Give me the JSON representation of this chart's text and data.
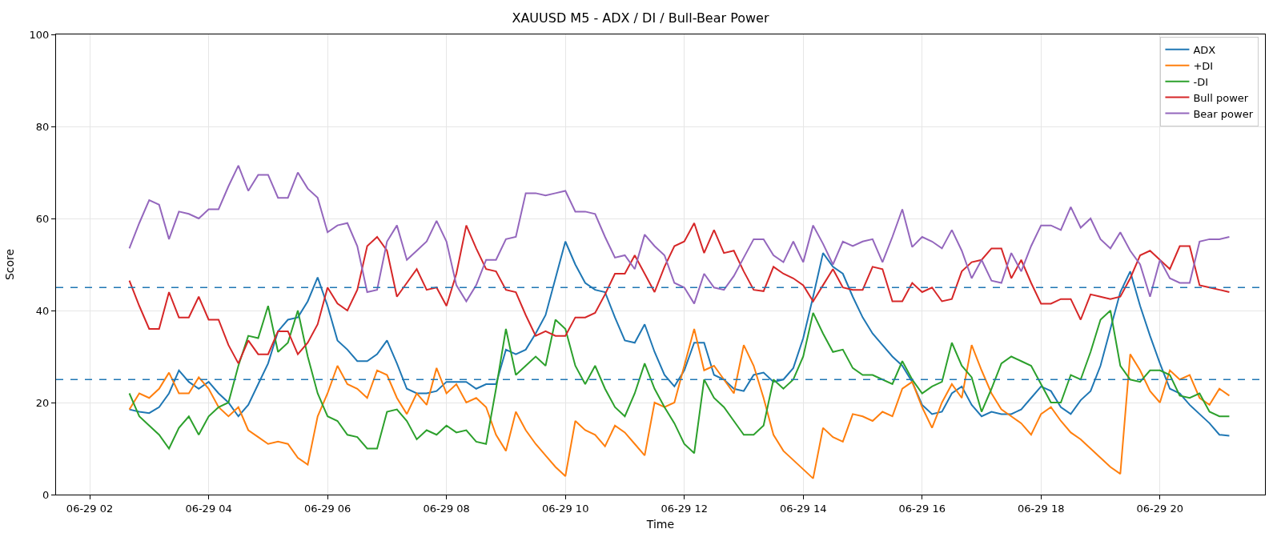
{
  "chart_data": {
    "type": "line",
    "title": "XAUUSD M5 - ADX / DI / Bull-Bear Power",
    "xlabel": "Time",
    "ylabel": "Score",
    "x": [
      "--06-29T02:40",
      "--06-29T02:50",
      "--06-29T03:00",
      "--06-29T03:10",
      "--06-29T03:20",
      "--06-29T03:30",
      "--06-29T03:40",
      "--06-29T03:50",
      "--06-29T04:00",
      "--06-29T04:10",
      "--06-29T04:20",
      "--06-29T04:30",
      "--06-29T04:40",
      "--06-29T04:50",
      "--06-29T05:00",
      "--06-29T05:10",
      "--06-29T05:20",
      "--06-29T05:30",
      "--06-29T05:40",
      "--06-29T05:50",
      "--06-29T06:00",
      "--06-29T06:10",
      "--06-29T06:20",
      "--06-29T06:30",
      "--06-29T06:40",
      "--06-29T06:50",
      "--06-29T07:00",
      "--06-29T07:10",
      "--06-29T07:20",
      "--06-29T07:30",
      "--06-29T07:40",
      "--06-29T07:50",
      "--06-29T08:00",
      "--06-29T08:10",
      "--06-29T08:20",
      "--06-29T08:30",
      "--06-29T08:40",
      "--06-29T08:50",
      "--06-29T09:00",
      "--06-29T09:10",
      "--06-29T09:20",
      "--06-29T09:30",
      "--06-29T09:40",
      "--06-29T09:50",
      "--06-29T10:00",
      "--06-29T10:10",
      "--06-29T10:20",
      "--06-29T10:30",
      "--06-29T10:40",
      "--06-29T10:50",
      "--06-29T11:00",
      "--06-29T11:10",
      "--06-29T11:20",
      "--06-29T11:30",
      "--06-29T11:40",
      "--06-29T11:50",
      "--06-29T12:00",
      "--06-29T12:10",
      "--06-29T12:20",
      "--06-29T12:30",
      "--06-29T12:40",
      "--06-29T12:50",
      "--06-29T13:00",
      "--06-29T13:10",
      "--06-29T13:20",
      "--06-29T13:30",
      "--06-29T13:40",
      "--06-29T13:50",
      "--06-29T14:00",
      "--06-29T14:10",
      "--06-29T14:20",
      "--06-29T14:30",
      "--06-29T14:40",
      "--06-29T14:50",
      "--06-29T15:00",
      "--06-29T15:10",
      "--06-29T15:20",
      "--06-29T15:30",
      "--06-29T15:40",
      "--06-29T15:50",
      "--06-29T16:00",
      "--06-29T16:10",
      "--06-29T16:20",
      "--06-29T16:30",
      "--06-29T16:40",
      "--06-29T16:50",
      "--06-29T17:00",
      "--06-29T17:10",
      "--06-29T17:20",
      "--06-29T17:30",
      "--06-29T17:40",
      "--06-29T17:50",
      "--06-29T18:00",
      "--06-29T18:10",
      "--06-29T18:20",
      "--06-29T18:30",
      "--06-29T18:40",
      "--06-29T18:50",
      "--06-29T19:00",
      "--06-29T19:10",
      "--06-29T19:20",
      "--06-29T19:30",
      "--06-29T19:40",
      "--06-29T19:50",
      "--06-29T20:00",
      "--06-29T20:10",
      "--06-29T20:20",
      "--06-29T20:30",
      "--06-29T20:40",
      "--06-29T20:50",
      "--06-29T21:00",
      "--06-29T21:10"
    ],
    "series": [
      {
        "name": "ADX",
        "color": "#1f77b4",
        "values": [
          18.5,
          18,
          17.7,
          19,
          22,
          27,
          24.5,
          23,
          24.5,
          22,
          20,
          17,
          19.5,
          24,
          28.5,
          35.5,
          38,
          38.5,
          42,
          47.2,
          41,
          33.5,
          31.5,
          29,
          29,
          30.5,
          33.5,
          28.5,
          23,
          22,
          22,
          22.5,
          24.5,
          24.5,
          24.5,
          23,
          24,
          24,
          31.5,
          30.5,
          31.5,
          35,
          39,
          47,
          55,
          50,
          46,
          44.5,
          44,
          38.5,
          33.5,
          33,
          37,
          31,
          26,
          23.5,
          27,
          33,
          33,
          26,
          25,
          23,
          22.5,
          26,
          26.5,
          24.5,
          25,
          27.5,
          34,
          43,
          52.5,
          49.5,
          48,
          43,
          38.5,
          35,
          32.5,
          30,
          28,
          24.5,
          19.5,
          17.5,
          18,
          22,
          23.5,
          19.5,
          17,
          18,
          17.5,
          17.5,
          18.5,
          21,
          23.5,
          22.5,
          19,
          17.5,
          20.5,
          22.5,
          28,
          36,
          44,
          48.5,
          41,
          34.5,
          28.5,
          23,
          22,
          19.5,
          17.5,
          15.5,
          13,
          12.8
        ]
      },
      {
        "name": "+DI",
        "color": "#ff7f0e",
        "values": [
          18.5,
          22,
          21,
          23,
          26.5,
          22,
          22,
          25.5,
          23,
          19,
          17,
          19,
          14,
          12.5,
          11,
          11.5,
          11,
          8,
          6.5,
          17,
          22,
          28,
          24,
          23,
          21,
          27,
          26,
          21,
          17.5,
          22,
          19.5,
          27.5,
          22,
          24,
          20,
          21,
          19,
          13,
          9.5,
          18,
          14,
          11,
          8.5,
          6,
          4,
          16,
          14,
          13,
          10.5,
          15,
          13.5,
          11,
          8.5,
          20,
          19,
          20,
          28,
          36,
          27,
          28,
          25,
          22,
          32.5,
          28,
          21,
          13,
          9.5,
          7.5,
          5.5,
          3.5,
          14.5,
          12.5,
          11.5,
          17.5,
          17,
          16,
          18,
          17,
          23,
          24.5,
          19,
          14.5,
          20,
          24,
          21,
          32.5,
          27,
          22,
          18.5,
          17,
          15.5,
          13,
          17.5,
          19,
          16,
          13.5,
          12,
          10,
          8,
          6,
          4.5,
          30.5,
          27,
          22.5,
          20,
          27,
          25,
          26,
          21,
          19.5,
          23,
          21.5
        ]
      },
      {
        "name": "-DI",
        "color": "#2ca02c",
        "values": [
          22,
          17,
          15,
          13,
          10,
          14.5,
          17,
          13,
          17,
          19,
          20,
          28,
          34.5,
          34,
          41,
          31,
          33,
          40,
          30,
          22,
          17,
          16,
          13,
          12.5,
          10,
          10,
          18,
          18.5,
          16,
          12,
          14,
          13,
          15,
          13.5,
          14,
          11.5,
          11,
          23,
          36,
          26,
          28,
          30,
          28,
          38,
          36,
          28,
          24,
          28,
          23,
          19,
          17,
          22,
          28.5,
          23,
          19,
          15.5,
          11,
          9,
          25,
          21,
          19,
          16,
          13,
          13,
          15,
          25,
          23,
          25,
          30,
          39.5,
          35,
          31,
          31.5,
          27.5,
          26,
          26,
          25,
          24,
          29,
          25,
          22,
          23.5,
          24.5,
          33,
          28,
          25.5,
          18,
          23,
          28.5,
          30,
          29,
          28,
          24,
          20,
          20,
          26,
          25,
          31,
          38,
          40,
          28,
          25,
          24.5,
          27,
          27,
          26,
          21.5,
          21,
          22,
          18,
          17,
          17
        ]
      },
      {
        "name": "Bull power",
        "color": "#d62728",
        "values": [
          46.5,
          41,
          36,
          36,
          44,
          38.5,
          38.5,
          43,
          38,
          38,
          32.5,
          28.5,
          33.5,
          30.5,
          30.5,
          35.5,
          35.5,
          30.5,
          33,
          37,
          45,
          41.5,
          40,
          44.5,
          54,
          56,
          53,
          43,
          46,
          49,
          44.5,
          45,
          41,
          48,
          58.5,
          53.5,
          49,
          48.5,
          44.5,
          44,
          39,
          34.5,
          35.5,
          34.5,
          34.5,
          38.5,
          38.5,
          39.5,
          43.5,
          48,
          48,
          52,
          48,
          44,
          49.5,
          54,
          55,
          59,
          52.5,
          57.5,
          52.5,
          53,
          48.5,
          44.5,
          44.2,
          49.5,
          48,
          47,
          45.5,
          42,
          45.5,
          49,
          45,
          44.5,
          44.5,
          49.5,
          49,
          42,
          42,
          46,
          44,
          45,
          42,
          42.5,
          48.5,
          50.5,
          51,
          53.5,
          53.5,
          47,
          51,
          46,
          41.5,
          41.5,
          42.5,
          42.5,
          38,
          43.5,
          43,
          42.5,
          43,
          47,
          52,
          53,
          51,
          49,
          54,
          54,
          45.5,
          45,
          44.5,
          44
        ]
      },
      {
        "name": "Bear power",
        "color": "#9467bd",
        "values": [
          53.5,
          59,
          64,
          63,
          55.5,
          61.5,
          61,
          60,
          62,
          62,
          67,
          71.5,
          66,
          69.5,
          69.5,
          64.5,
          64.5,
          70,
          66.5,
          64.5,
          57,
          58.5,
          59,
          54,
          44,
          44.5,
          55,
          58.5,
          51,
          53,
          55,
          59.5,
          55,
          45.5,
          42,
          45.5,
          51,
          51,
          55.5,
          56,
          65.5,
          65.5,
          65,
          65.5,
          66,
          61.5,
          61.5,
          61,
          56,
          51.5,
          52,
          49,
          56.5,
          54,
          52,
          46,
          45,
          41.5,
          48,
          45,
          44.5,
          47.5,
          51.5,
          55.5,
          55.5,
          52,
          50.5,
          55,
          50.5,
          58.5,
          54.5,
          50,
          55,
          54,
          55,
          55.5,
          50.5,
          56,
          62,
          53.8,
          56,
          55,
          53.5,
          57.5,
          53,
          47,
          51,
          46.5,
          46,
          52.5,
          48.5,
          54,
          58.5,
          58.5,
          57.5,
          62.5,
          58,
          60,
          55.5,
          53.5,
          57,
          53,
          50,
          43,
          51,
          47,
          46,
          46,
          55,
          55.5,
          55.5,
          56
        ]
      }
    ],
    "ref_lines": [
      {
        "axis": "y",
        "value": 45,
        "color": "#1f77b4",
        "line_style": "dashed"
      },
      {
        "axis": "y",
        "value": 25,
        "color": "#1f77b4",
        "line_style": "dashed"
      }
    ],
    "xlim": [
      "--06-29T01:26",
      "--06-29T21:46"
    ],
    "xticks": [
      {
        "value": "--06-29T02:00",
        "label": "06-29 02"
      },
      {
        "value": "--06-29T04:00",
        "label": "06-29 04"
      },
      {
        "value": "--06-29T06:00",
        "label": "06-29 06"
      },
      {
        "value": "--06-29T08:00",
        "label": "06-29 08"
      },
      {
        "value": "--06-29T10:00",
        "label": "06-29 10"
      },
      {
        "value": "--06-29T12:00",
        "label": "06-29 12"
      },
      {
        "value": "--06-29T14:00",
        "label": "06-29 14"
      },
      {
        "value": "--06-29T16:00",
        "label": "06-29 16"
      },
      {
        "value": "--06-29T18:00",
        "label": "06-29 18"
      },
      {
        "value": "--06-29T20:00",
        "label": "06-29 20"
      }
    ],
    "ylim": [
      0,
      100
    ],
    "yticks": [
      0,
      20,
      40,
      60,
      80,
      100
    ],
    "grid": true,
    "legend": "top right",
    "line_style": "solid",
    "marker": "none"
  }
}
